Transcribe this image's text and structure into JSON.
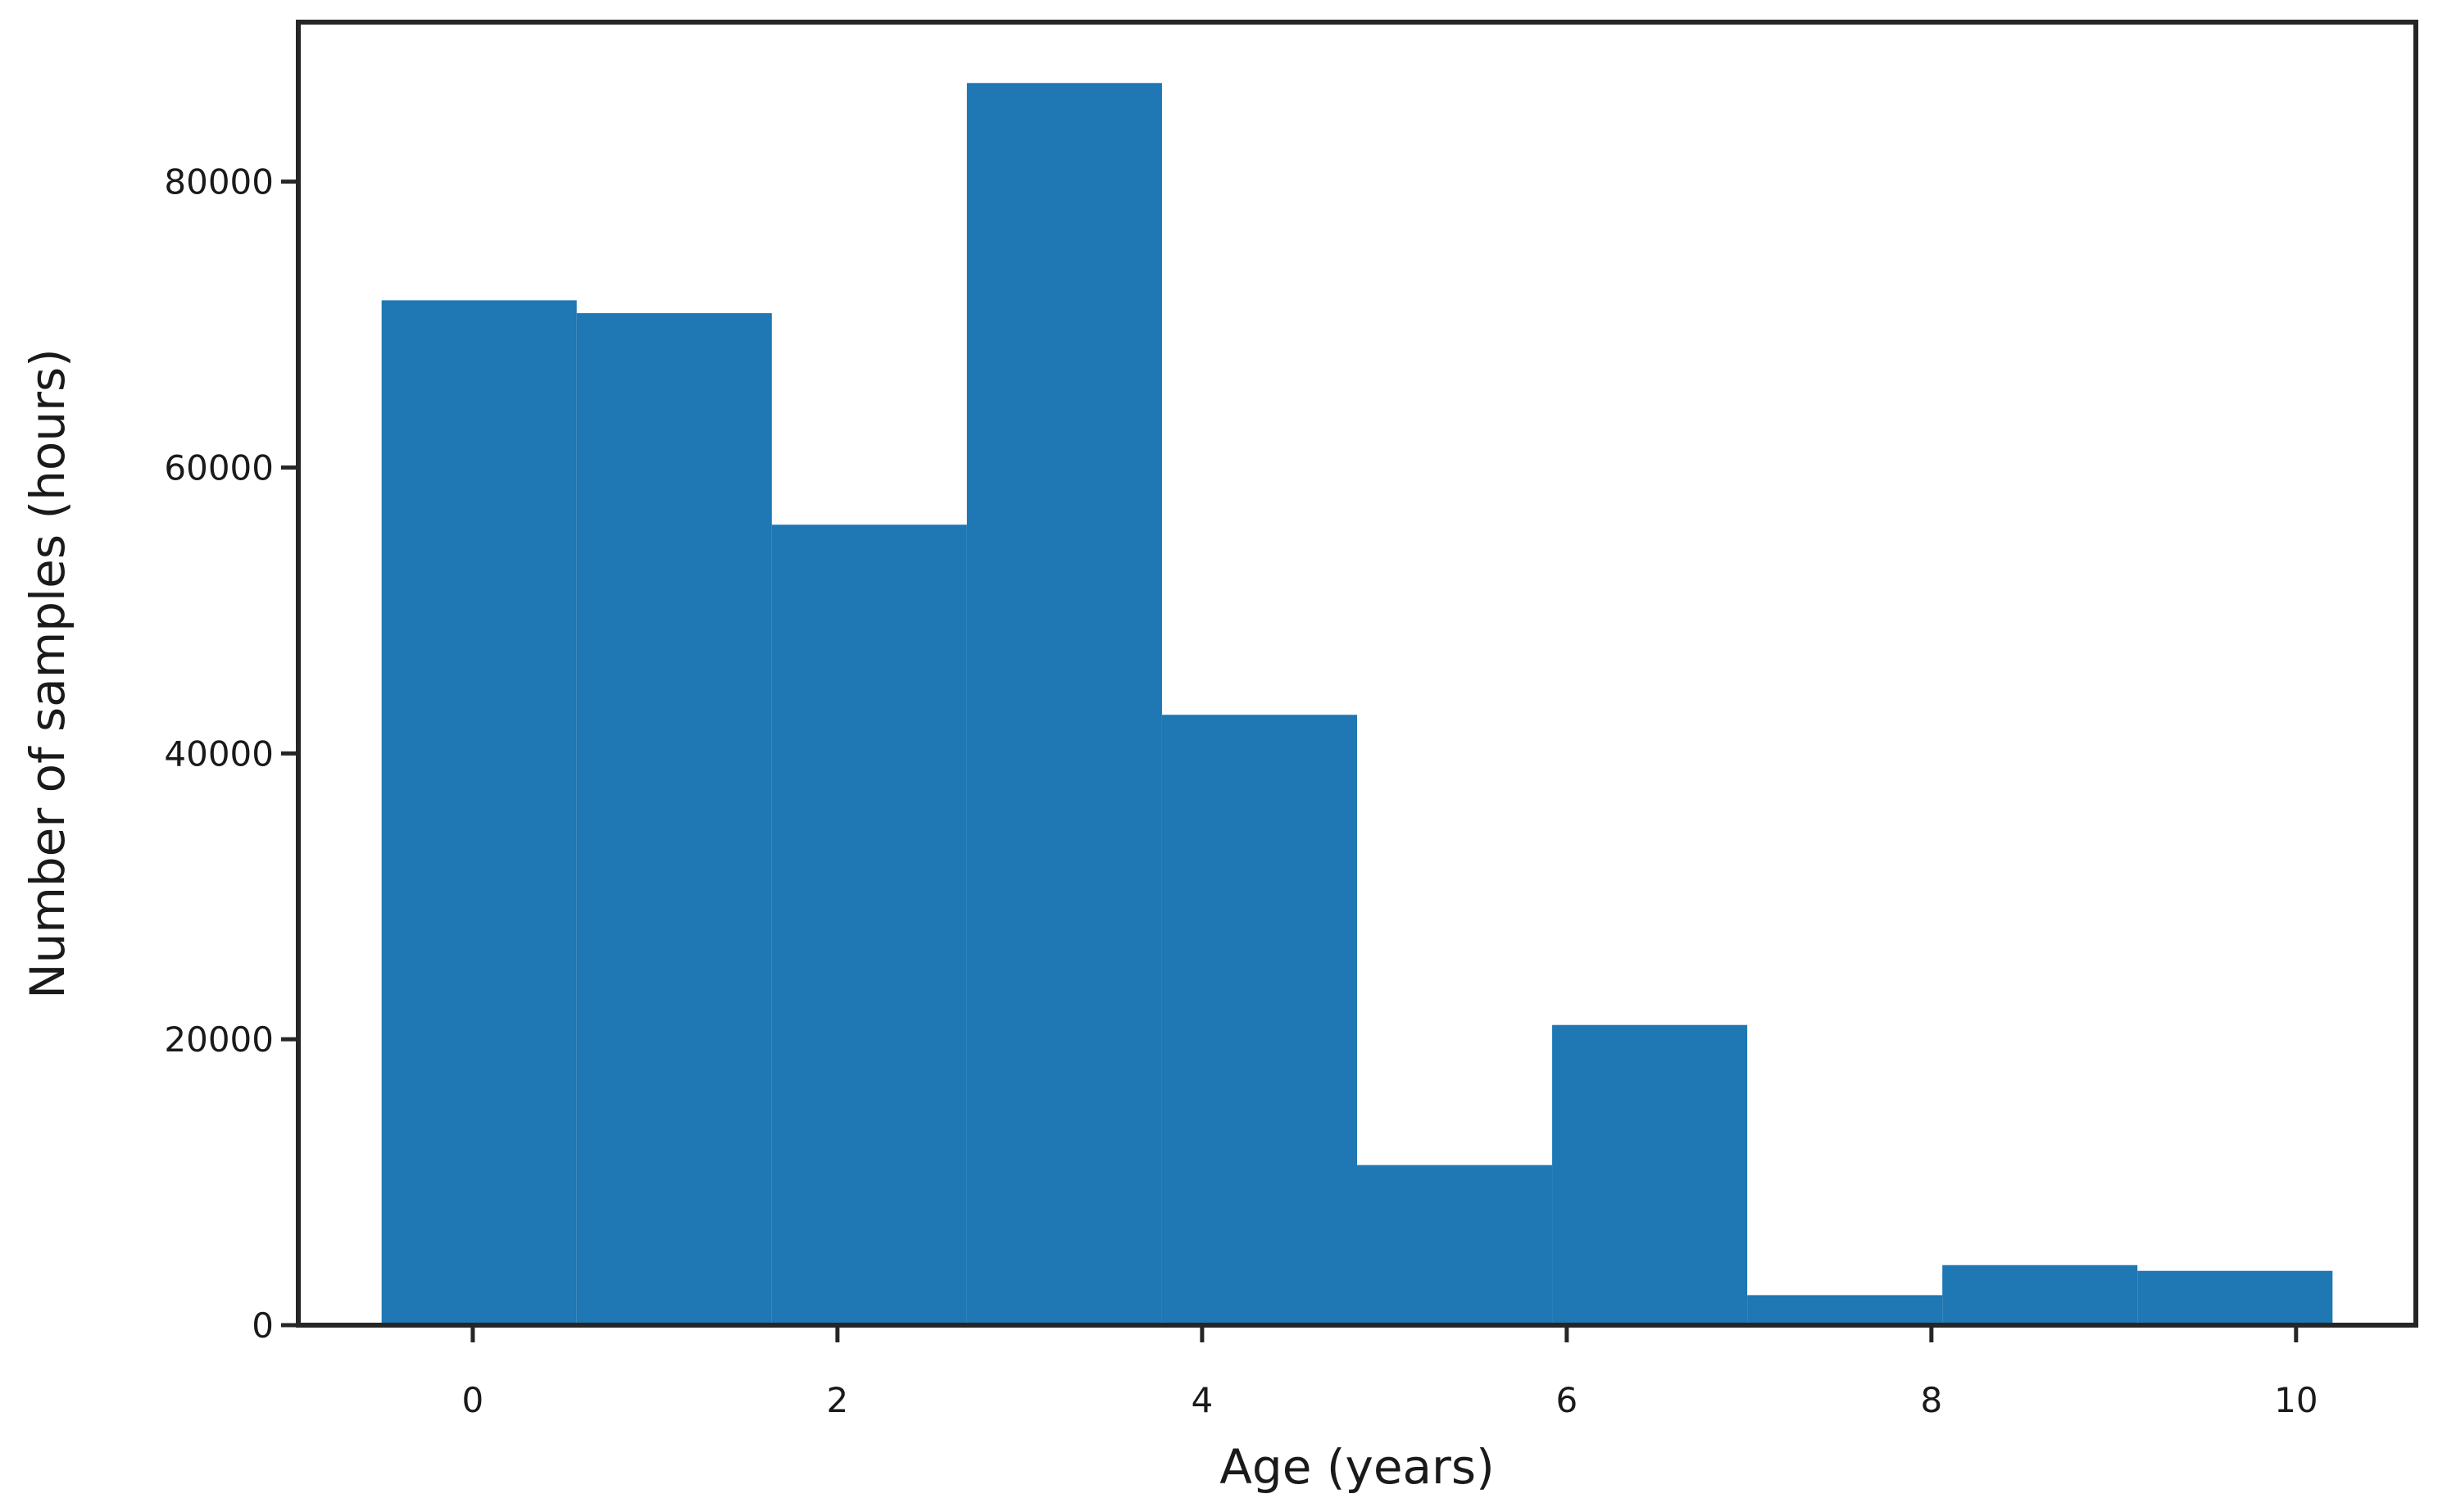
{
  "chart_data": {
    "type": "bar",
    "subtype": "histogram",
    "title": "",
    "xlabel": "Age (years)",
    "ylabel": "Number of samples (hours)",
    "bin_edges": [
      -0.5,
      0.57,
      1.64,
      2.71,
      3.78,
      4.85,
      5.92,
      6.99,
      8.06,
      9.13,
      10.2
    ],
    "counts": [
      71700,
      70800,
      56000,
      86900,
      42700,
      11200,
      21000,
      2100,
      4200,
      3800
    ],
    "xticks": [
      0,
      2,
      4,
      6,
      8,
      10
    ],
    "xtick_labels": [
      "0",
      "2",
      "4",
      "6",
      "8",
      "10"
    ],
    "yticks": [
      0,
      20000,
      40000,
      60000,
      80000
    ],
    "ytick_labels": [
      "0",
      "20000",
      "40000",
      "60000",
      "80000"
    ],
    "xlim": [
      -0.957,
      10.657
    ],
    "ylim": [
      0,
      91160
    ],
    "grid": false,
    "legend": null,
    "bar_color": "#1f77b4",
    "spine_color": "#262626",
    "text_color": "#1a1a1a",
    "background_color": "#ffffff"
  }
}
